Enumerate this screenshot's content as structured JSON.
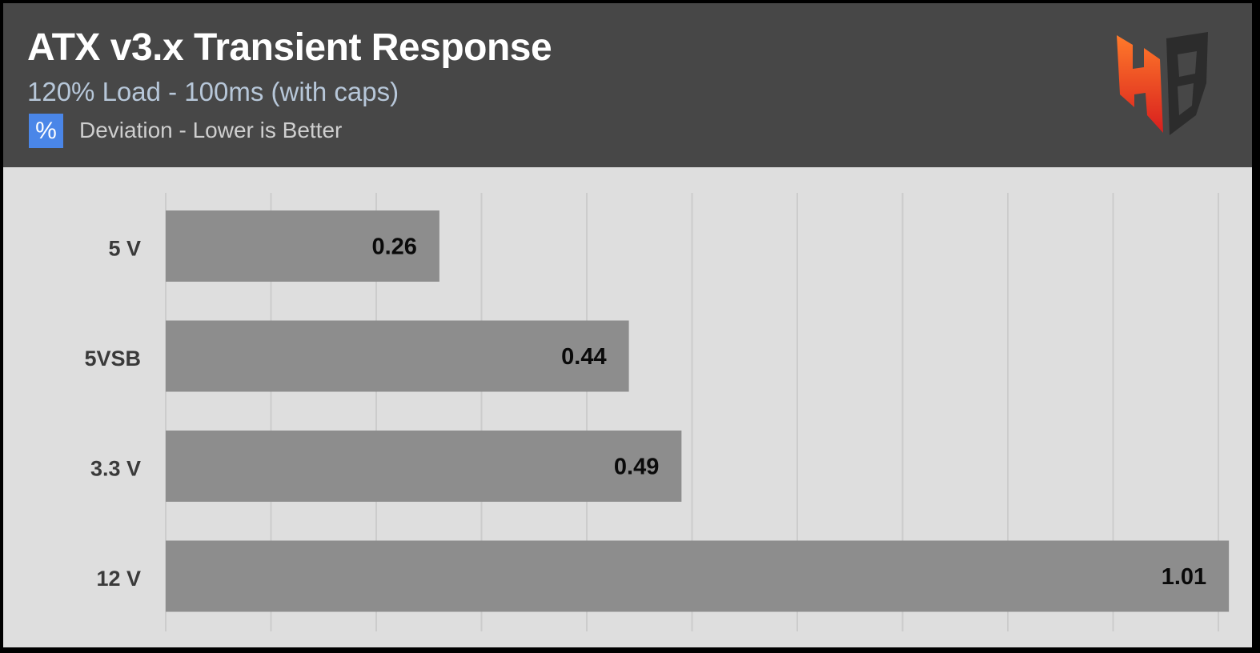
{
  "chart_data": {
    "type": "bar",
    "orientation": "horizontal",
    "title": "ATX v3.x Transient Response",
    "subtitle": "120% Load - 100ms (with caps)",
    "unit_symbol": "%",
    "legend_text": "Deviation - Lower is Better",
    "categories": [
      "5 V",
      "5VSB",
      "3.3 V",
      "12 V"
    ],
    "values": [
      0.26,
      0.44,
      0.49,
      1.01
    ],
    "value_labels": [
      "0.26",
      "0.44",
      "0.49",
      "1.01"
    ],
    "xlim": [
      0,
      1.0
    ],
    "grid": true,
    "colors": {
      "bar": "#8d8d8d",
      "header_bg": "#474747",
      "plot_bg": "#dedede",
      "unit_badge": "#4a86e8",
      "subtitle": "#b7c7d9"
    }
  },
  "logo": {
    "icon": "hb-logo-icon"
  }
}
